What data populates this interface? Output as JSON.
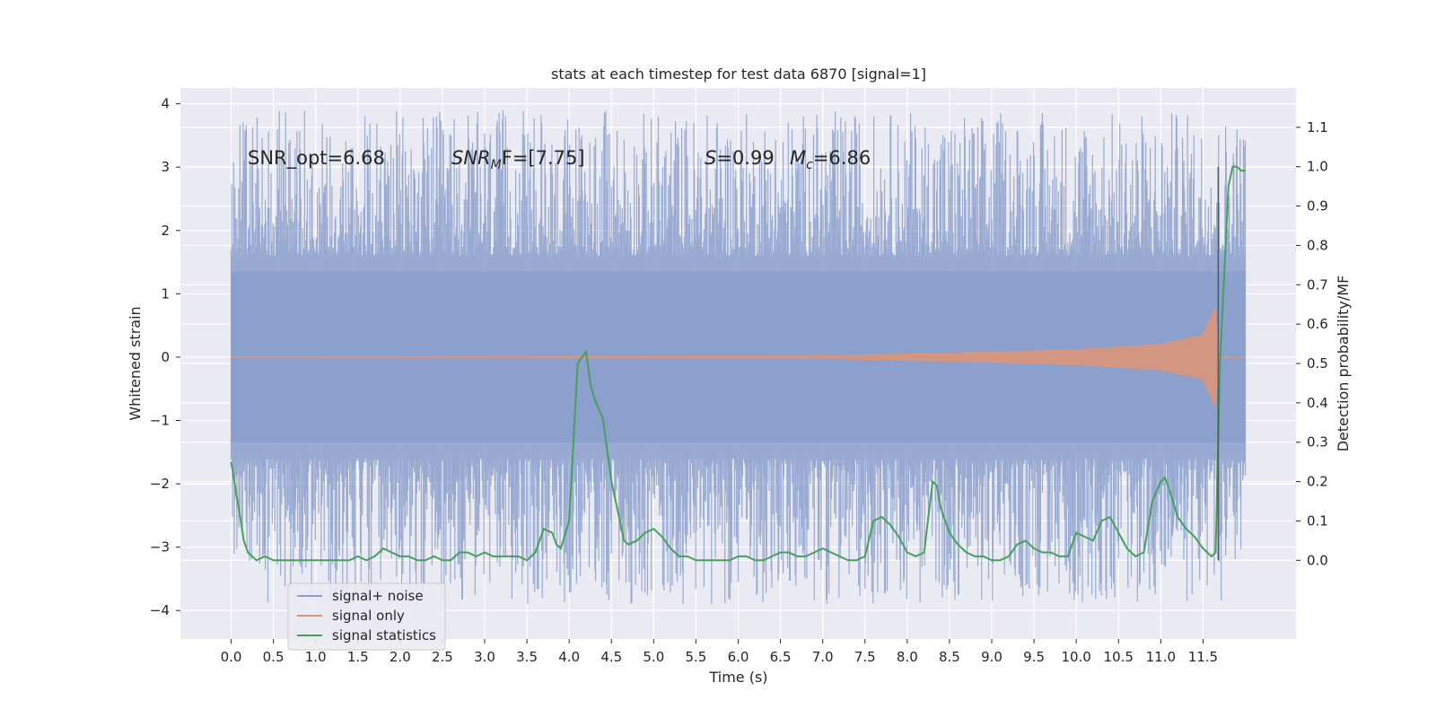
{
  "chart_data": {
    "type": "line",
    "title": "stats at each timestep for test data 6870 [signal=1]",
    "xlabel": "Time (s)",
    "ylabel_left": "Whitened strain",
    "ylabel_right": "Detection probability/MF",
    "xlim": [
      -0.6,
      12.6
    ],
    "ylim_left": [
      -4.45,
      4.25
    ],
    "ylim_right": [
      -0.2,
      1.2
    ],
    "xticks": [
      0.0,
      0.5,
      1.0,
      1.5,
      2.0,
      2.5,
      3.0,
      3.5,
      4.0,
      4.5,
      5.0,
      5.5,
      6.0,
      6.5,
      7.0,
      7.5,
      8.0,
      8.5,
      9.0,
      9.5,
      10.0,
      10.5,
      11.0,
      11.5
    ],
    "xtick_labels": [
      "0.0",
      "0.5",
      "1.0",
      "1.5",
      "2.0",
      "2.5",
      "3.0",
      "3.5",
      "4.0",
      "4.5",
      "5.0",
      "5.5",
      "6.0",
      "6.5",
      "7.0",
      "7.5",
      "8.0",
      "8.5",
      "9.0",
      "9.5",
      "10.0",
      "10.5",
      "11.0",
      "11.5"
    ],
    "yticks_left": [
      -4,
      -3,
      -2,
      -1,
      0,
      1,
      2,
      3,
      4
    ],
    "yticks_right": [
      0.0,
      0.1,
      0.2,
      0.3,
      0.4,
      0.5,
      0.6,
      0.7,
      0.8,
      0.9,
      1.0,
      1.1
    ],
    "ytick_labels_right": [
      "0.0",
      "0.1",
      "0.2",
      "0.3",
      "0.4",
      "0.5",
      "0.6",
      "0.7",
      "0.8",
      "0.9",
      "1.0",
      "1.1"
    ],
    "grid": true,
    "legend_position": "lower-left",
    "annotations": {
      "snr_opt": "SNR_opt=6.68",
      "snr_mf_sym": "SNR",
      "snr_mf_sub": "M",
      "snr_mf_rest": "F=[7.75]",
      "s_sym": "S",
      "s_rest": "=0.99",
      "mc_sym": "M",
      "mc_sub": "c",
      "mc_rest": "=6.86"
    },
    "vline": {
      "x": 11.68,
      "y_right_range": [
        0.0,
        1.0
      ],
      "color": "#555555"
    },
    "series": [
      {
        "name": "signal+ noise",
        "color": "#8a9fcb",
        "axis": "left",
        "x_range": [
          0.0,
          12.0
        ],
        "envelope": {
          "core_low": -1.35,
          "core_high": 1.35,
          "peak_low": -3.9,
          "peak_high": 3.9
        }
      },
      {
        "name": "signal only",
        "color": "#d6967e",
        "axis": "left",
        "x_range": [
          0.0,
          12.0
        ],
        "chirp_end": 11.68,
        "amplitude_at": [
          [
            0.0,
            0.0
          ],
          [
            7.0,
            0.02
          ],
          [
            8.0,
            0.05
          ],
          [
            9.0,
            0.08
          ],
          [
            10.0,
            0.12
          ],
          [
            11.0,
            0.2
          ],
          [
            11.5,
            0.35
          ],
          [
            11.65,
            0.8
          ],
          [
            11.68,
            0.0
          ],
          [
            12.0,
            0.0
          ]
        ]
      },
      {
        "name": "signal statistics",
        "color": "#4a9e5c",
        "axis": "right",
        "x": [
          0.0,
          0.1,
          0.15,
          0.2,
          0.3,
          0.4,
          0.5,
          0.6,
          0.7,
          0.8,
          0.9,
          1.0,
          1.1,
          1.2,
          1.3,
          1.4,
          1.5,
          1.6,
          1.7,
          1.8,
          1.9,
          2.0,
          2.1,
          2.2,
          2.3,
          2.4,
          2.5,
          2.6,
          2.7,
          2.8,
          2.9,
          3.0,
          3.1,
          3.2,
          3.3,
          3.4,
          3.5,
          3.6,
          3.7,
          3.8,
          3.85,
          3.9,
          4.0,
          4.05,
          4.1,
          4.2,
          4.25,
          4.3,
          4.4,
          4.45,
          4.5,
          4.6,
          4.65,
          4.7,
          4.8,
          4.9,
          5.0,
          5.1,
          5.2,
          5.3,
          5.4,
          5.5,
          5.6,
          5.7,
          5.8,
          5.9,
          6.0,
          6.1,
          6.2,
          6.3,
          6.4,
          6.5,
          6.6,
          6.7,
          6.8,
          6.9,
          7.0,
          7.1,
          7.2,
          7.3,
          7.4,
          7.5,
          7.6,
          7.7,
          7.8,
          7.9,
          8.0,
          8.1,
          8.2,
          8.3,
          8.35,
          8.4,
          8.5,
          8.6,
          8.7,
          8.8,
          8.9,
          9.0,
          9.1,
          9.2,
          9.3,
          9.4,
          9.5,
          9.6,
          9.7,
          9.8,
          9.9,
          10.0,
          10.1,
          10.2,
          10.3,
          10.4,
          10.5,
          10.6,
          10.7,
          10.8,
          10.9,
          11.0,
          11.05,
          11.1,
          11.2,
          11.3,
          11.4,
          11.5,
          11.6,
          11.65,
          11.7,
          11.8,
          11.85,
          11.9,
          11.95,
          12.0
        ],
        "y": [
          0.25,
          0.12,
          0.05,
          0.02,
          0.0,
          0.01,
          0.0,
          0.0,
          0.0,
          0.0,
          0.0,
          0.0,
          0.0,
          0.0,
          0.0,
          0.0,
          0.01,
          0.0,
          0.01,
          0.03,
          0.02,
          0.01,
          0.01,
          0.0,
          0.0,
          0.01,
          0.0,
          0.0,
          0.02,
          0.02,
          0.01,
          0.02,
          0.01,
          0.01,
          0.01,
          0.01,
          0.0,
          0.02,
          0.08,
          0.07,
          0.04,
          0.03,
          0.1,
          0.3,
          0.5,
          0.53,
          0.45,
          0.41,
          0.36,
          0.28,
          0.2,
          0.1,
          0.05,
          0.04,
          0.05,
          0.07,
          0.08,
          0.06,
          0.03,
          0.01,
          0.01,
          0.0,
          0.0,
          0.0,
          0.0,
          0.0,
          0.01,
          0.01,
          0.0,
          0.0,
          0.01,
          0.02,
          0.02,
          0.01,
          0.01,
          0.02,
          0.03,
          0.02,
          0.01,
          0.0,
          0.0,
          0.01,
          0.1,
          0.11,
          0.09,
          0.06,
          0.02,
          0.01,
          0.02,
          0.2,
          0.19,
          0.13,
          0.07,
          0.04,
          0.02,
          0.01,
          0.01,
          0.0,
          0.0,
          0.01,
          0.04,
          0.05,
          0.03,
          0.02,
          0.02,
          0.01,
          0.01,
          0.07,
          0.06,
          0.05,
          0.1,
          0.11,
          0.07,
          0.03,
          0.01,
          0.02,
          0.15,
          0.2,
          0.21,
          0.18,
          0.11,
          0.08,
          0.06,
          0.03,
          0.01,
          0.02,
          0.5,
          0.95,
          1.0,
          1.0,
          0.99,
          0.99
        ]
      }
    ]
  }
}
